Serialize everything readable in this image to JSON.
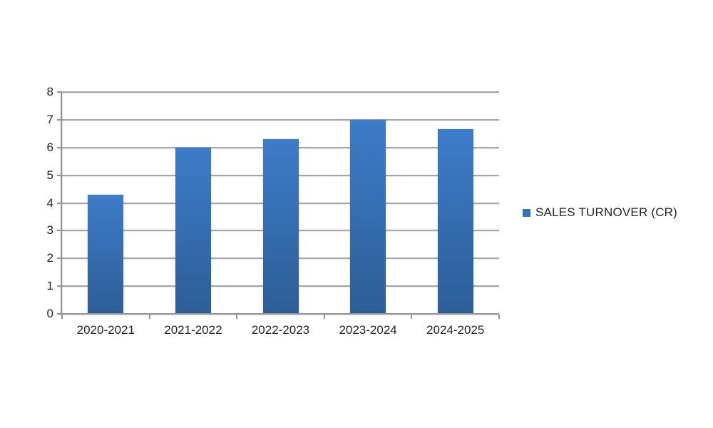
{
  "chart_data": {
    "type": "bar",
    "title": "",
    "xlabel": "",
    "ylabel": "",
    "categories": [
      "2020-2021",
      "2021-2022",
      "2022-2023",
      "2023-2024",
      "2024-2025"
    ],
    "series": [
      {
        "name": "SALES TURNOVER (CR)",
        "values": [
          4.3,
          6.0,
          6.3,
          7.0,
          6.65
        ]
      }
    ],
    "ylim": [
      0,
      8
    ],
    "yticks": [
      0,
      1,
      2,
      3,
      4,
      5,
      6,
      7,
      8
    ],
    "grid": true,
    "legend_position": "right",
    "colors": {
      "bar_gradient_top": "#3D7CCA",
      "bar_gradient_bottom": "#2C5E96",
      "legend_swatch": "#3273B9",
      "gridline": "#A6A6A6",
      "axis": "#949494",
      "text": "#262626",
      "background": "#FFFFFF"
    }
  }
}
